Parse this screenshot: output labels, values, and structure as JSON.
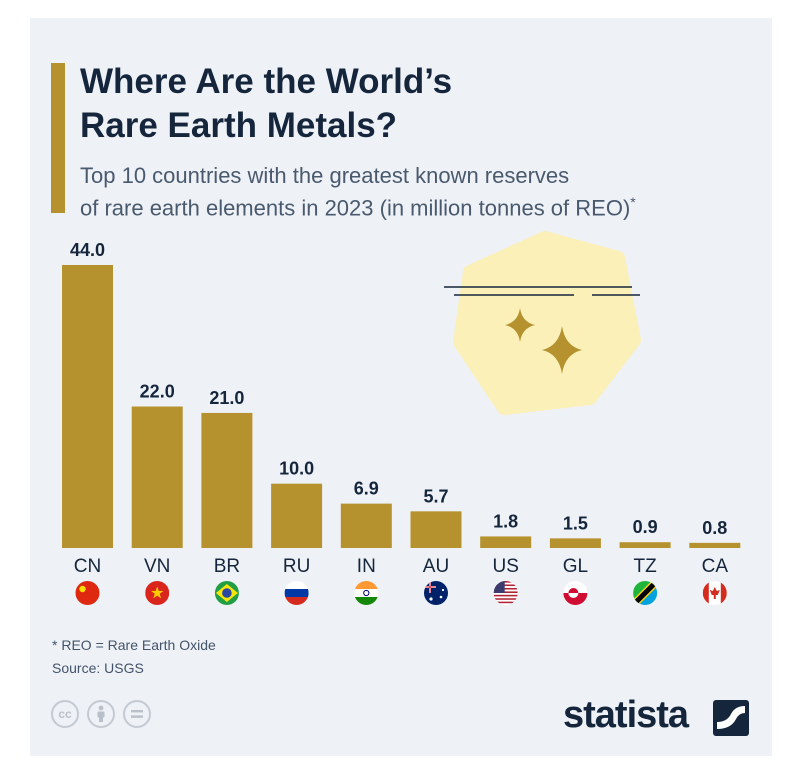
{
  "header": {
    "title": "Where Are the World’s\nRare Earth Metals?",
    "subtitle": "Top 10 countries with the greatest known reserves\nof rare earth elements in 2023 (in million tonnes of REO)",
    "subtitle_marker": "*"
  },
  "chart_data": {
    "type": "bar",
    "title": "Where Are the World’s Rare Earth Metals?",
    "subtitle": "Top 10 countries with the greatest known reserves of rare earth elements in 2023 (in million tonnes of REO)*",
    "categories": [
      "CN",
      "VN",
      "BR",
      "RU",
      "IN",
      "AU",
      "US",
      "GL",
      "TZ",
      "CA"
    ],
    "values": [
      44.0,
      22.0,
      21.0,
      10.0,
      6.9,
      5.7,
      1.8,
      1.5,
      0.9,
      0.8
    ],
    "data_labels": [
      "44.0",
      "22.0",
      "21.0",
      "10.0",
      "6.9",
      "5.7",
      "1.8",
      "1.5",
      "0.9",
      "0.8"
    ],
    "ylim": [
      0,
      44
    ],
    "grid": false,
    "legend": "none",
    "bar_color": "#b6922e"
  },
  "flags": [
    "china-flag-icon",
    "vietnam-flag-icon",
    "brazil-flag-icon",
    "russia-flag-icon",
    "india-flag-icon",
    "australia-flag-icon",
    "usa-flag-icon",
    "greenland-flag-icon",
    "tanzania-flag-icon",
    "canada-flag-icon"
  ],
  "footer": {
    "note": "* REO = Rare Earth Oxide",
    "source": "Source: USGS",
    "brand": "statista",
    "license_icons": [
      "cc-icon",
      "by-icon",
      "nd-icon"
    ]
  },
  "colors": {
    "accent": "#b6922e",
    "title": "#15263c",
    "background": "#eef1f6",
    "highlight": "#fbf0b8"
  }
}
